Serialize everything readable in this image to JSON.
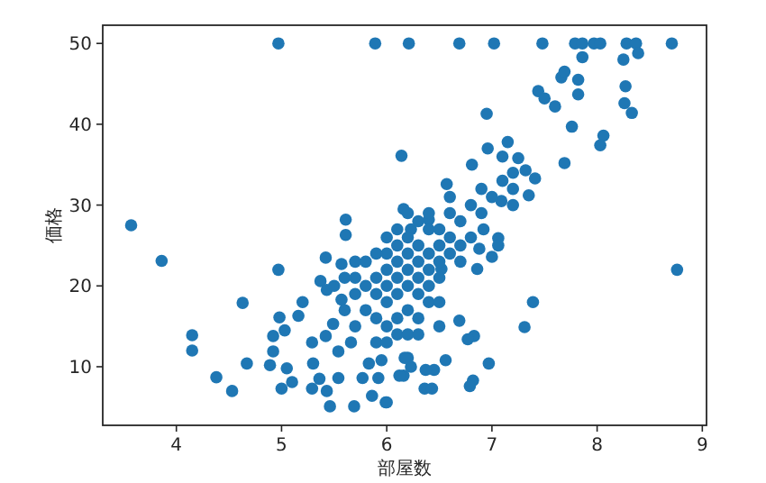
{
  "chart_data": {
    "type": "scatter",
    "xlabel": "部屋数",
    "ylabel": "価格",
    "color": "#1f77b4",
    "marker": "circle",
    "xlim": [
      3.3,
      9.04
    ],
    "ylim": [
      2.75,
      52.25
    ],
    "xticks": [
      4,
      5,
      6,
      7,
      8,
      9
    ],
    "yticks": [
      10,
      20,
      30,
      40,
      50
    ],
    "x": [
      3.57,
      3.86,
      4.15,
      4.15,
      4.38,
      4.53,
      4.63,
      4.67,
      4.97,
      4.97,
      5.89,
      6.21,
      6.69,
      7.02,
      7.48,
      7.79,
      7.86,
      7.97,
      8.03,
      8.28,
      8.37,
      8.71,
      7.86,
      8.25,
      8.39,
      7.66,
      7.69,
      7.82,
      7.82,
      8.27,
      8.26,
      8.33,
      7.44,
      7.5,
      7.6,
      6.95,
      7.76,
      8.06,
      8.03,
      7.69,
      6.14,
      7.15,
      6.96,
      6.81,
      7.25,
      7.32,
      7.41,
      7.35,
      6.57,
      6.16,
      6.23,
      7.09,
      6.4,
      6.92,
      7.06,
      8.76,
      7.39,
      7.31,
      6.97,
      6.82,
      6.79,
      6.83,
      6.77,
      6.69,
      6.56,
      6.45,
      6.37,
      6.36,
      6.43,
      6.16,
      6.0,
      6.23,
      6.2,
      6.52,
      6.86,
      7.06,
      7.0,
      6.88,
      5.61,
      5.61,
      5.42,
      5.57,
      5.37,
      5.43,
      5.2,
      5.16,
      5.49,
      5.42,
      5.29,
      5.3,
      5.36,
      5.29,
      5.43,
      5.46,
      5.69,
      5.54,
      5.77,
      5.86,
      5.99,
      5.92,
      5.05,
      5.0,
      5.1,
      4.89,
      4.92,
      4.92,
      5.03,
      4.98,
      5.66,
      5.54,
      5.57,
      5.95,
      5.83,
      6.17,
      6.12,
      5.8,
      5.9,
      5.9,
      6.0,
      6.0,
      6.0,
      6.1,
      6.1,
      6.1,
      6.2,
      6.2,
      6.2,
      6.3,
      6.3,
      6.3,
      6.4,
      6.4,
      6.4,
      6.5,
      6.5,
      6.5,
      6.6,
      6.6,
      6.7,
      6.7,
      5.7,
      5.8,
      5.9,
      6.0,
      6.1,
      6.2,
      6.3,
      6.4,
      6.5,
      5.7,
      5.8,
      6.0,
      6.1,
      6.2,
      6.3,
      6.4,
      6.5,
      6.6,
      6.7,
      6.8,
      6.9,
      7.0,
      7.1,
      7.2,
      5.6,
      5.7,
      5.9,
      6.0,
      6.1,
      6.2,
      6.3,
      6.5,
      5.5,
      5.6,
      5.7,
      5.9,
      6.0,
      6.1,
      6.2,
      6.3,
      6.4,
      6.6,
      6.8,
      6.9,
      7.2,
      7.1,
      7.2
    ],
    "values": [
      27.5,
      23.1,
      13.9,
      12.0,
      8.7,
      7.0,
      17.9,
      10.4,
      50,
      22.0,
      50,
      50,
      50,
      50,
      50,
      50,
      50,
      50,
      50,
      50,
      50,
      50,
      48.3,
      48.0,
      48.8,
      45.8,
      46.5,
      45.5,
      43.7,
      44.7,
      42.6,
      41.4,
      44.1,
      43.2,
      42.2,
      41.3,
      39.7,
      38.6,
      37.4,
      35.2,
      36.1,
      37.8,
      37.0,
      35.0,
      35.8,
      34.3,
      33.3,
      31.2,
      32.6,
      29.5,
      27.0,
      30.5,
      28.2,
      27.0,
      25.9,
      22.0,
      18.0,
      14.9,
      10.4,
      8.3,
      7.6,
      13.8,
      13.4,
      15.7,
      10.8,
      9.6,
      9.6,
      7.3,
      7.3,
      8.9,
      5.6,
      10.0,
      11.1,
      22.1,
      22.1,
      25.0,
      23.6,
      24.6,
      28.2,
      26.3,
      23.5,
      22.7,
      20.6,
      19.5,
      18.0,
      16.3,
      15.3,
      13.8,
      13.0,
      10.4,
      8.5,
      7.3,
      7.0,
      5.1,
      5.1,
      8.6,
      8.6,
      6.4,
      5.6,
      8.6,
      9.8,
      7.3,
      8.1,
      10.2,
      11.9,
      13.8,
      14.5,
      16.1,
      13.0,
      11.9,
      18.3,
      10.8,
      10.4,
      11.1,
      8.9,
      20,
      19,
      21,
      20,
      22,
      18,
      21,
      19,
      23,
      20,
      22,
      24,
      21,
      23,
      19,
      22,
      24,
      20,
      23,
      25,
      21,
      24,
      26,
      25,
      23,
      19,
      17,
      16,
      15,
      16,
      17,
      16,
      18,
      18,
      21,
      23,
      24,
      25,
      26,
      25,
      27,
      27,
      29,
      28,
      30,
      32,
      31,
      33,
      34,
      17,
      15,
      13,
      13,
      14,
      14,
      14,
      15,
      20,
      21,
      23,
      24,
      26,
      27,
      29,
      28,
      29,
      31,
      26,
      29,
      30,
      36,
      32
    ]
  }
}
